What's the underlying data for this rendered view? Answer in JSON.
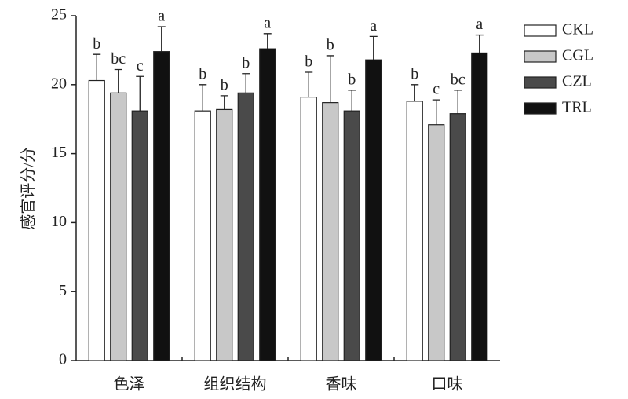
{
  "chart_data": {
    "type": "bar",
    "y_label": "感官评分/分",
    "categories": [
      "色泽",
      "组织结构",
      "香味",
      "口味"
    ],
    "series": [
      {
        "name": "CKL",
        "color": "#ffffff",
        "values": [
          20.3,
          18.1,
          19.1,
          18.8
        ],
        "errors": [
          1.9,
          1.9,
          1.8,
          1.2
        ],
        "letters": [
          "b",
          "b",
          "b",
          "b"
        ]
      },
      {
        "name": "CGL",
        "color": "#c8c8c8",
        "values": [
          19.4,
          18.2,
          18.7,
          17.1
        ],
        "errors": [
          1.7,
          1.0,
          3.4,
          1.8
        ],
        "letters": [
          "bc",
          "b",
          "b",
          "c"
        ]
      },
      {
        "name": "CZL",
        "color": "#4a4a4a",
        "values": [
          18.1,
          19.4,
          18.1,
          17.9
        ],
        "errors": [
          2.5,
          1.4,
          1.5,
          1.7
        ],
        "letters": [
          "c",
          "b",
          "b",
          "bc"
        ]
      },
      {
        "name": "TRL",
        "color": "#111111",
        "values": [
          22.4,
          22.6,
          21.8,
          22.3
        ],
        "errors": [
          1.8,
          1.1,
          1.7,
          1.3
        ],
        "letters": [
          "a",
          "a",
          "a",
          "a"
        ]
      }
    ],
    "ylim": [
      0,
      25
    ],
    "yticks": [
      0,
      5,
      10,
      15,
      20,
      25
    ],
    "legend": "upper-right"
  }
}
